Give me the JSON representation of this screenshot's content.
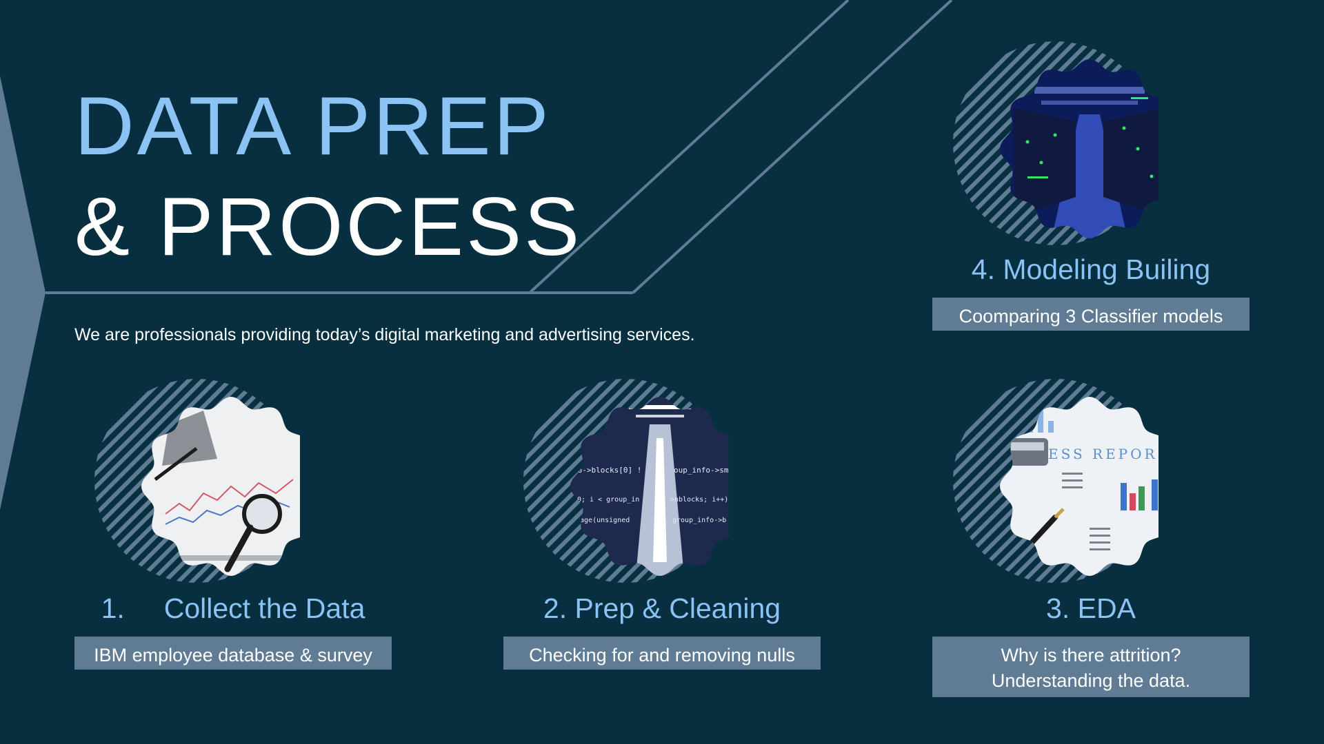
{
  "title": {
    "line1": "DATA PREP",
    "line2": "& PROCESS"
  },
  "tagline": "We are professionals providing today’s digital marketing and advertising services.",
  "colors": {
    "background": "#072f40",
    "accent": "#8cc3f5",
    "box": "#5f7c94",
    "stripe": "#5f7c94"
  },
  "steps": [
    {
      "title": "1.     Collect the Data",
      "description": "IBM employee database & survey",
      "image_subject": "stock-chart-with-magnifying-glass"
    },
    {
      "title": "2. Prep & Cleaning",
      "description": "Checking for and removing nulls",
      "image_subject": "server-corridor-with-code"
    },
    {
      "title": "3. EDA",
      "description_line1": "Why is there attrition?",
      "description_line2": "Understanding the data.",
      "image_subject": "business-report-with-pen"
    },
    {
      "title": "4. Modeling Builing",
      "description": "Coomparing 3 Classifier models",
      "image_subject": "data-center-servers"
    }
  ]
}
